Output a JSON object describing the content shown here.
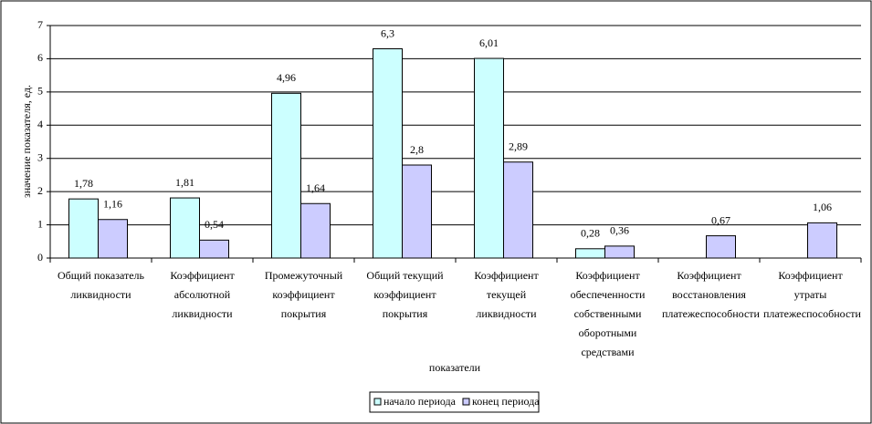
{
  "chart_data": {
    "type": "bar",
    "x_label": "показатели",
    "y_label": "значение показателя, ед.",
    "categories": [
      "Общий показатель ликвидности",
      "Коэффициент абсолютной ликвидности",
      "Промежуточный коэффициент покрытия",
      "Общий текущий коэффициент покрытия",
      "Коэффициент текущей ликвидности",
      "Коэффициент обеспеченности собственными оборотными средствами",
      "Коэффициент восстановления платежеспособности",
      "Коэффициент утраты платежеспособности"
    ],
    "series": [
      {
        "name": "начало периода",
        "color": "#ccffff",
        "values": [
          1.78,
          1.81,
          4.96,
          6.3,
          6.01,
          0.28,
          null,
          null
        ],
        "value_labels": [
          "1,78",
          "1,81",
          "4,96",
          "6,3",
          "6,01",
          "0,28",
          null,
          null
        ]
      },
      {
        "name": "конец периода",
        "color": "#ccccff",
        "values": [
          1.16,
          0.54,
          1.64,
          2.8,
          2.89,
          0.36,
          0.67,
          1.06
        ],
        "value_labels": [
          "1,16",
          "0,54",
          "1,64",
          "2,8",
          "2,89",
          "0,36",
          "0,67",
          "1,06"
        ]
      }
    ],
    "ylim": [
      0,
      7
    ],
    "yticks": [
      0,
      1,
      2,
      3,
      4,
      5,
      6,
      7
    ],
    "grid": true,
    "legend": "bottom"
  }
}
